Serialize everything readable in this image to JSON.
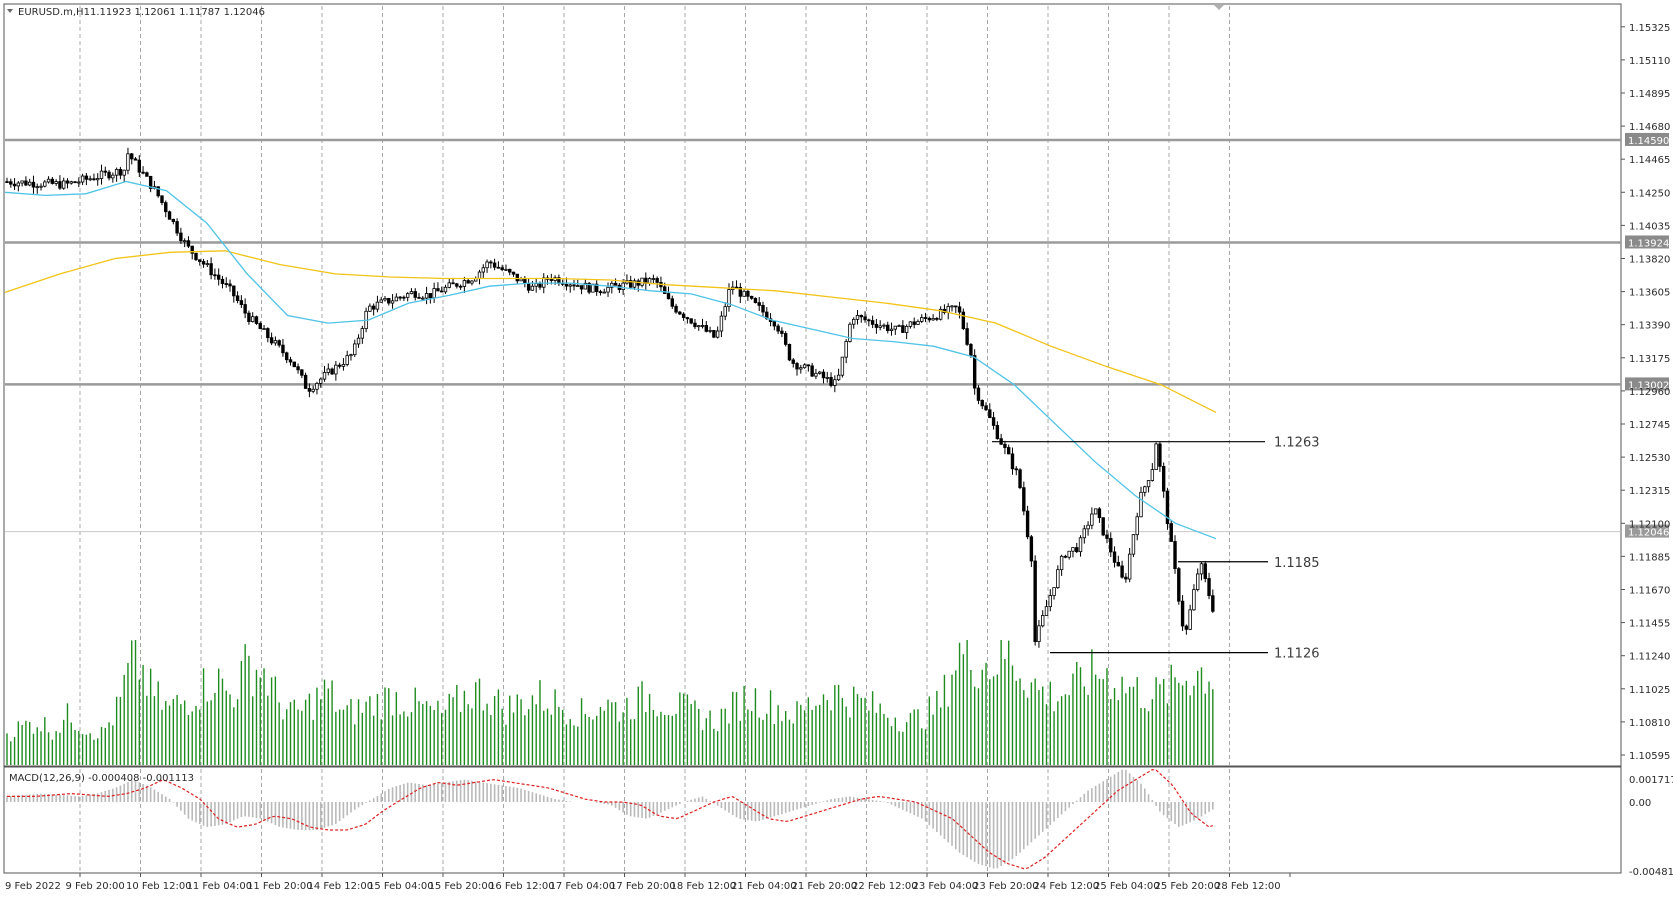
{
  "header": {
    "symbol": "EURUSD.m,H1",
    "ohlc": "1.11923 1.12061 1.11787 1.12046"
  },
  "macd_header": "MACD(12,26,9) -0.000408 -0.001113",
  "colors": {
    "candle": "#000000",
    "ma_fast": "#4fc3e8",
    "ma_slow": "#f2c318",
    "volume": "#1e8c1e",
    "macd_hist": "#b9b9b9",
    "macd_signal": "#e02020",
    "hline": "#9a9a9a"
  },
  "chart_data": [
    {
      "type": "candlestick",
      "title": "EURUSD.m,H1",
      "price_axis_ticks": [
        "1.15325",
        "1.15110",
        "1.14895",
        "1.14680",
        "1.14465",
        "1.14250",
        "1.14035",
        "1.13820",
        "1.13605",
        "1.13390",
        "1.13175",
        "1.12960",
        "1.12745",
        "1.12530",
        "1.12315",
        "1.12100",
        "1.11885",
        "1.11670",
        "1.11455",
        "1.11240",
        "1.11025",
        "1.10810",
        "1.10595"
      ],
      "ylim": [
        1.1053,
        1.1546
      ],
      "time_axis_labels": [
        "9 Feb 2022",
        "9 Feb 20:00",
        "10 Feb 12:00",
        "11 Feb 04:00",
        "11 Feb 20:00",
        "14 Feb 12:00",
        "15 Feb 04:00",
        "15 Feb 20:00",
        "16 Feb 12:00",
        "17 Feb 04:00",
        "17 Feb 20:00",
        "18 Feb 12:00",
        "21 Feb 04:00",
        "21 Feb 20:00",
        "22 Feb 12:00",
        "23 Feb 04:00",
        "23 Feb 20:00",
        "24 Feb 12:00",
        "25 Feb 04:00",
        "25 Feb 20:00",
        "28 Feb 12:00"
      ],
      "horizontal_levels": [
        {
          "price": 1.1459,
          "label": "1.14590"
        },
        {
          "price": 1.13924,
          "label": "1.13924"
        },
        {
          "price": 1.13002,
          "label": "1.13002"
        },
        {
          "price": 1.12046,
          "label": "1.12046"
        }
      ],
      "annotations": [
        {
          "text": "1.1263",
          "price": 1.1263
        },
        {
          "text": "1.1185",
          "price": 1.1185
        },
        {
          "text": "1.1126",
          "price": 1.1126
        }
      ],
      "close_path": [
        {
          "x": "9 Feb 2022",
          "y": 1.1432
        },
        {
          "x": "9 Feb 20:00",
          "y": 1.143
        },
        {
          "x": "10 Feb 08:00",
          "y": 1.144
        },
        {
          "x": "10 Feb 12:00",
          "y": 1.1452
        },
        {
          "x": "10 Feb 16:00",
          "y": 1.1425
        },
        {
          "x": "11 Feb 04:00",
          "y": 1.139
        },
        {
          "x": "11 Feb 12:00",
          "y": 1.136
        },
        {
          "x": "11 Feb 20:00",
          "y": 1.1345
        },
        {
          "x": "14 Feb 04:00",
          "y": 1.1315
        },
        {
          "x": "14 Feb 12:00",
          "y": 1.1297
        },
        {
          "x": "14 Feb 20:00",
          "y": 1.132
        },
        {
          "x": "15 Feb 04:00",
          "y": 1.135
        },
        {
          "x": "15 Feb 12:00",
          "y": 1.136
        },
        {
          "x": "15 Feb 20:00",
          "y": 1.1358
        },
        {
          "x": "16 Feb 04:00",
          "y": 1.137
        },
        {
          "x": "16 Feb 12:00",
          "y": 1.138
        },
        {
          "x": "16 Feb 20:00",
          "y": 1.1362
        },
        {
          "x": "17 Feb 04:00",
          "y": 1.137
        },
        {
          "x": "17 Feb 12:00",
          "y": 1.1362
        },
        {
          "x": "17 Feb 20:00",
          "y": 1.1363
        },
        {
          "x": "18 Feb 04:00",
          "y": 1.1368
        },
        {
          "x": "18 Feb 12:00",
          "y": 1.1352
        },
        {
          "x": "18 Feb 20:00",
          "y": 1.133
        },
        {
          "x": "21 Feb 04:00",
          "y": 1.1365
        },
        {
          "x": "21 Feb 12:00",
          "y": 1.134
        },
        {
          "x": "21 Feb 20:00",
          "y": 1.1315
        },
        {
          "x": "22 Feb 04:00",
          "y": 1.13
        },
        {
          "x": "22 Feb 12:00",
          "y": 1.1345
        },
        {
          "x": "22 Feb 20:00",
          "y": 1.1335
        },
        {
          "x": "23 Feb 04:00",
          "y": 1.134
        },
        {
          "x": "23 Feb 12:00",
          "y": 1.135
        },
        {
          "x": "23 Feb 16:00",
          "y": 1.1315
        },
        {
          "x": "23 Feb 20:00",
          "y": 1.13
        },
        {
          "x": "24 Feb 04:00",
          "y": 1.124
        },
        {
          "x": "24 Feb 08:00",
          "y": 1.118
        },
        {
          "x": "24 Feb 12:00",
          "y": 1.113
        },
        {
          "x": "24 Feb 16:00",
          "y": 1.119
        },
        {
          "x": "24 Feb 20:00",
          "y": 1.1195
        },
        {
          "x": "25 Feb 04:00",
          "y": 1.122
        },
        {
          "x": "25 Feb 08:00",
          "y": 1.117
        },
        {
          "x": "25 Feb 12:00",
          "y": 1.1225
        },
        {
          "x": "25 Feb 16:00",
          "y": 1.125
        },
        {
          "x": "25 Feb 20:00",
          "y": 1.127
        },
        {
          "x": "28 Feb 00:00",
          "y": 1.1135
        },
        {
          "x": "28 Feb 04:00",
          "y": 1.1185
        },
        {
          "x": "28 Feb 08:00",
          "y": 1.115
        },
        {
          "x": "28 Feb 12:00",
          "y": 1.119
        },
        {
          "x": "28 Feb 14:00",
          "y": 1.1225
        },
        {
          "x": "28 Feb 16:00",
          "y": 1.12046
        }
      ],
      "ma_fast_path": [
        1.1425,
        1.1423,
        1.1424,
        1.1432,
        1.1426,
        1.1405,
        1.1372,
        1.1345,
        1.134,
        1.1342,
        1.1353,
        1.1358,
        1.1364,
        1.1366,
        1.1366,
        1.1364,
        1.1361,
        1.1359,
        1.1352,
        1.1342,
        1.1336,
        1.133,
        1.1328,
        1.1325,
        1.1318,
        1.13,
        1.1275,
        1.125,
        1.1228,
        1.121,
        1.12
      ],
      "ma_slow_path": [
        1.136,
        1.1372,
        1.1382,
        1.1386,
        1.1387,
        1.1378,
        1.1372,
        1.137,
        1.1369,
        1.1369,
        1.1369,
        1.1368,
        1.1365,
        1.1363,
        1.1361,
        1.1357,
        1.1353,
        1.1348,
        1.134,
        1.1325,
        1.1312,
        1.13,
        1.1282
      ],
      "volume_profile": [
        0.25,
        0.3,
        0.35,
        0.28,
        0.4,
        0.3,
        0.25,
        0.45,
        0.9,
        0.6,
        0.45,
        0.5,
        0.6,
        0.7,
        0.55,
        0.8,
        0.75,
        0.5,
        0.4,
        0.5,
        0.6,
        0.4,
        0.45,
        0.5,
        0.55,
        0.5,
        0.45,
        0.4,
        0.5,
        0.6,
        0.55,
        0.45,
        0.5,
        0.55,
        0.5,
        0.45,
        0.4,
        0.5,
        0.45,
        0.5,
        0.55,
        0.5,
        0.45,
        0.4,
        0.35,
        0.45,
        0.55,
        0.5,
        0.45,
        0.4,
        0.5,
        0.6,
        0.55,
        0.5,
        0.45,
        0.4,
        0.35,
        0.4,
        0.5,
        0.9,
        0.85,
        0.8,
        0.9,
        0.75,
        0.6,
        0.55,
        0.6,
        0.7,
        0.75,
        0.65,
        0.6,
        0.55,
        0.6,
        0.7,
        0.75,
        0.7
      ],
      "macd_axis_ticks": [
        "0.001717",
        "0.00",
        "-0.004815"
      ],
      "macd_hist_profile": [
        0.2,
        0.25,
        0.3,
        0.25,
        0.2,
        0.3,
        0.5,
        0.8,
        0.5,
        0.1,
        -0.6,
        -0.9,
        -0.8,
        -0.5,
        -0.6,
        -0.9,
        -1.0,
        -1.0,
        -0.8,
        -0.3,
        0.1,
        0.5,
        0.7,
        0.6,
        0.7,
        0.8,
        0.7,
        0.6,
        0.5,
        0.3,
        0.1,
        0.0,
        0.0,
        -0.1,
        -0.5,
        -0.6,
        -0.3,
        0.0,
        0.2,
        -0.2,
        -0.6,
        -0.7,
        -0.5,
        -0.3,
        -0.1,
        0.1,
        0.2,
        0.1,
        0.0,
        -0.3,
        -0.6,
        -1.2,
        -1.8,
        -2.2,
        -2.4,
        -2.0,
        -1.4,
        -0.8,
        -0.2,
        0.4,
        0.8,
        1.2,
        0.6,
        -0.4,
        -0.9,
        -0.6,
        -0.2
      ]
    }
  ]
}
